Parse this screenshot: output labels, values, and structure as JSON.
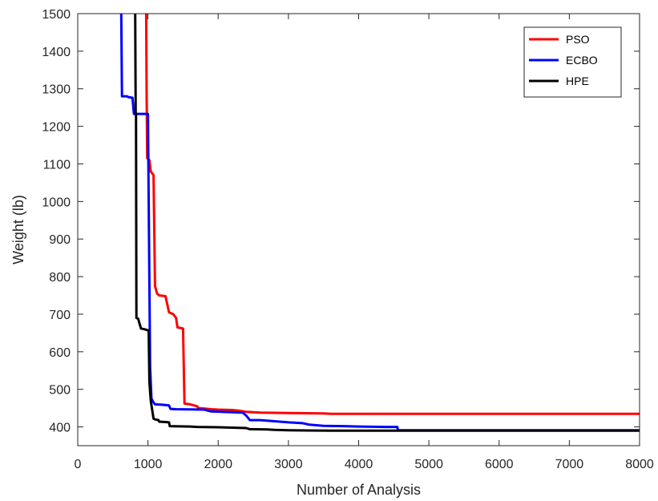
{
  "chart_data": {
    "type": "line",
    "title": "",
    "xlabel": "Number of Analysis",
    "ylabel": "Weight (lb)",
    "xlim": [
      0,
      8000
    ],
    "ylim": [
      350,
      1500
    ],
    "xticks": [
      0,
      1000,
      2000,
      3000,
      4000,
      5000,
      6000,
      7000,
      8000
    ],
    "yticks": [
      400,
      500,
      600,
      700,
      800,
      900,
      1000,
      1100,
      1200,
      1300,
      1400,
      1500
    ],
    "grid": false,
    "legend_position": "top-right",
    "series": [
      {
        "name": "PSO",
        "color": "#ff0000",
        "points": [
          [
            975,
            1500
          ],
          [
            980,
            1300
          ],
          [
            990,
            1115
          ],
          [
            1020,
            1110
          ],
          [
            1040,
            1080
          ],
          [
            1080,
            1070
          ],
          [
            1100,
            775
          ],
          [
            1130,
            755
          ],
          [
            1160,
            750
          ],
          [
            1250,
            748
          ],
          [
            1300,
            705
          ],
          [
            1360,
            700
          ],
          [
            1400,
            690
          ],
          [
            1420,
            665
          ],
          [
            1500,
            662
          ],
          [
            1520,
            462
          ],
          [
            1600,
            460
          ],
          [
            1700,
            455
          ],
          [
            1720,
            450
          ],
          [
            1800,
            449
          ],
          [
            1900,
            447
          ],
          [
            2000,
            446
          ],
          [
            2200,
            445
          ],
          [
            2300,
            443
          ],
          [
            2400,
            440
          ],
          [
            2600,
            438
          ],
          [
            3000,
            437
          ],
          [
            3500,
            436
          ],
          [
            3600,
            435
          ],
          [
            4500,
            435
          ],
          [
            8000,
            435
          ]
        ]
      },
      {
        "name": "ECBO",
        "color": "#0000ff",
        "points": [
          [
            620,
            1500
          ],
          [
            630,
            1280
          ],
          [
            700,
            1280
          ],
          [
            720,
            1278
          ],
          [
            780,
            1276
          ],
          [
            800,
            1233
          ],
          [
            1000,
            1233
          ],
          [
            1030,
            560
          ],
          [
            1050,
            475
          ],
          [
            1080,
            465
          ],
          [
            1100,
            460
          ],
          [
            1200,
            459
          ],
          [
            1300,
            457
          ],
          [
            1320,
            448
          ],
          [
            1400,
            447
          ],
          [
            1800,
            446
          ],
          [
            1900,
            441
          ],
          [
            2200,
            439
          ],
          [
            2350,
            438
          ],
          [
            2400,
            430
          ],
          [
            2450,
            418
          ],
          [
            2600,
            418
          ],
          [
            2800,
            415
          ],
          [
            3000,
            412
          ],
          [
            3200,
            410
          ],
          [
            3300,
            406
          ],
          [
            3500,
            403
          ],
          [
            3800,
            402
          ],
          [
            4000,
            401
          ],
          [
            4400,
            400
          ],
          [
            4550,
            400
          ],
          [
            4560,
            391
          ],
          [
            8000,
            391
          ]
        ]
      },
      {
        "name": "HPE",
        "color": "#000000",
        "points": [
          [
            818,
            1500
          ],
          [
            825,
            1233
          ],
          [
            830,
            1233
          ],
          [
            835,
            690
          ],
          [
            860,
            688
          ],
          [
            880,
            675
          ],
          [
            900,
            662
          ],
          [
            950,
            660
          ],
          [
            1000,
            657
          ],
          [
            1010,
            657
          ],
          [
            1020,
            520
          ],
          [
            1040,
            470
          ],
          [
            1060,
            445
          ],
          [
            1080,
            422
          ],
          [
            1100,
            420
          ],
          [
            1150,
            418
          ],
          [
            1160,
            414
          ],
          [
            1250,
            413
          ],
          [
            1300,
            412
          ],
          [
            1310,
            402
          ],
          [
            1600,
            401
          ],
          [
            1700,
            400
          ],
          [
            2000,
            399
          ],
          [
            2200,
            398
          ],
          [
            2400,
            397
          ],
          [
            2450,
            394
          ],
          [
            2700,
            393
          ],
          [
            2800,
            392
          ],
          [
            3000,
            391
          ],
          [
            3600,
            390
          ],
          [
            8000,
            390
          ]
        ]
      }
    ]
  }
}
